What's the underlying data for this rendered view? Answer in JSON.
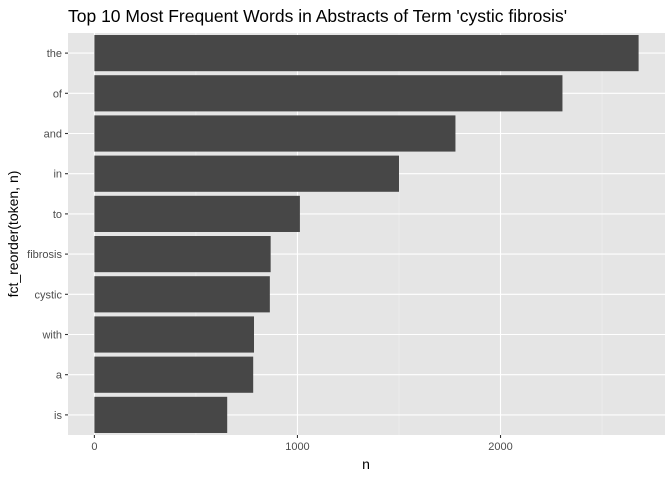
{
  "chart_data": {
    "type": "bar",
    "orientation": "horizontal",
    "title": "Top 10 Most Frequent Words in Abstracts of Term 'cystic fibrosis'",
    "xlabel": "n",
    "ylabel": "fct_reorder(token, n)",
    "categories": [
      "the",
      "of",
      "and",
      "in",
      "to",
      "fibrosis",
      "cystic",
      "with",
      "a",
      "is"
    ],
    "values": [
      2680,
      2305,
      1778,
      1500,
      1012,
      868,
      864,
      786,
      782,
      654
    ],
    "xlim": [
      -130,
      2810
    ],
    "xticks": [
      0,
      1000,
      2000
    ],
    "xtick_labels": [
      "0",
      "1000",
      "2000"
    ],
    "grid": true,
    "legend": "none",
    "colors": {
      "panel_background": "#e5e5e5",
      "grid_major": "#ffffff",
      "grid_minor": "#f2f2f2",
      "bar_fill": "#474747",
      "tick_text": "#4d4d4d",
      "tick_mark": "#333333"
    }
  }
}
